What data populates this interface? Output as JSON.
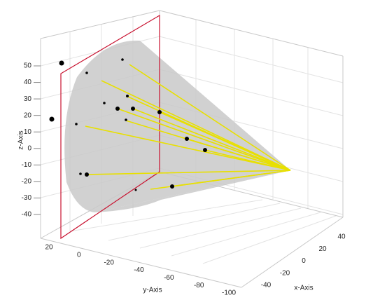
{
  "chart_data": {
    "type": "scatter3d",
    "xlabel": "x-Axis",
    "ylabel": "y-Axis",
    "zlabel": "z-Axis",
    "xticks": [
      -40,
      -20,
      0,
      20,
      40
    ],
    "yticks": [
      20,
      0,
      -20,
      -40,
      -60,
      -80,
      -100
    ],
    "zticks": [
      50,
      40,
      30,
      20,
      10,
      0,
      -10,
      -20,
      -30,
      -40
    ]
  }
}
